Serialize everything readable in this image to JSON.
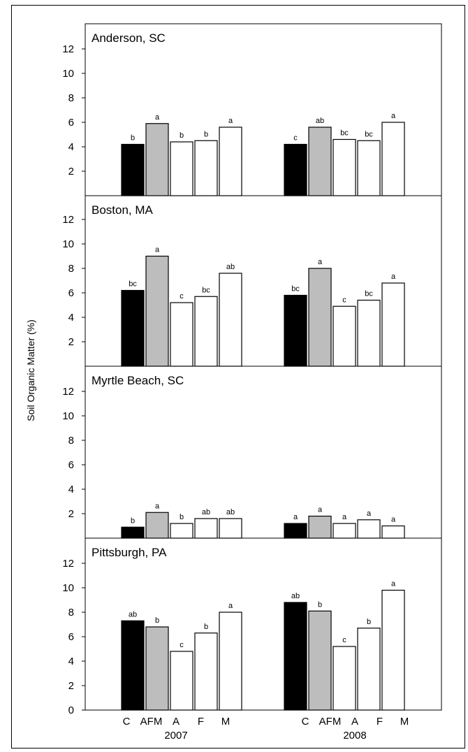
{
  "chart_data": {
    "type": "bar",
    "ylabel": "Soil Organic Matter (%)",
    "years": [
      "2007",
      "2008"
    ],
    "treatments": [
      "C",
      "AFM",
      "A",
      "F",
      "M"
    ],
    "treatment_colors": {
      "C": "#000000",
      "AFM": "#bdbdbd",
      "A": "#ffffff",
      "F": "#ffffff",
      "M": "#ffffff"
    },
    "ylim": [
      0,
      14
    ],
    "yticks": [
      0,
      2,
      4,
      6,
      8,
      10,
      12
    ],
    "panels": [
      {
        "title": "Anderson, SC",
        "series": [
          {
            "year": "2007",
            "values": [
              4.2,
              5.9,
              4.4,
              4.5,
              5.6
            ],
            "labels": [
              "b",
              "a",
              "b",
              "b",
              "a"
            ]
          },
          {
            "year": "2008",
            "values": [
              4.2,
              5.6,
              4.6,
              4.5,
              6.0
            ],
            "labels": [
              "c",
              "ab",
              "bc",
              "bc",
              "a"
            ]
          }
        ]
      },
      {
        "title": "Boston, MA",
        "series": [
          {
            "year": "2007",
            "values": [
              6.2,
              9.0,
              5.2,
              5.7,
              7.6
            ],
            "labels": [
              "bc",
              "a",
              "c",
              "bc",
              "ab"
            ]
          },
          {
            "year": "2008",
            "values": [
              5.8,
              8.0,
              4.9,
              5.4,
              6.8
            ],
            "labels": [
              "bc",
              "a",
              "c",
              "bc",
              "a"
            ]
          }
        ]
      },
      {
        "title": "Myrtle Beach, SC",
        "series": [
          {
            "year": "2007",
            "values": [
              0.9,
              2.1,
              1.2,
              1.6,
              1.6
            ],
            "labels": [
              "b",
              "a",
              "b",
              "ab",
              "ab"
            ]
          },
          {
            "year": "2008",
            "values": [
              1.2,
              1.8,
              1.2,
              1.5,
              1.0
            ],
            "labels": [
              "a",
              "a",
              "a",
              "a",
              "a"
            ]
          }
        ]
      },
      {
        "title": "Pittsburgh, PA",
        "series": [
          {
            "year": "2007",
            "values": [
              7.3,
              6.8,
              4.8,
              6.3,
              8.0
            ],
            "labels": [
              "ab",
              "b",
              "c",
              "b",
              "a"
            ]
          },
          {
            "year": "2008",
            "values": [
              8.8,
              8.1,
              5.2,
              6.7,
              9.8
            ],
            "labels": [
              "ab",
              "b",
              "c",
              "b",
              "a"
            ]
          }
        ]
      }
    ]
  }
}
